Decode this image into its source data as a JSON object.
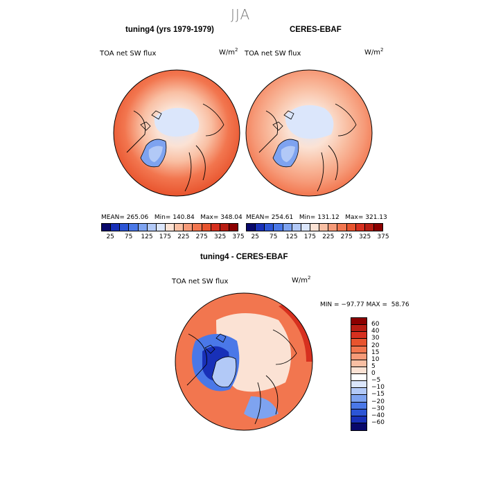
{
  "figure": {
    "season": "JJA"
  },
  "panels": [
    {
      "title": "tuning4 (yrs 1979-1979)",
      "variable": "TOA net SW flux",
      "units_base": "W/m",
      "units_exp": "2",
      "stats": "MEAN= 265.06   Min= 140.84   Max= 348.04"
    },
    {
      "title": "CERES-EBAF",
      "variable": "TOA net SW flux",
      "units_base": "W/m",
      "units_exp": "2",
      "stats": "MEAN= 254.61   Min= 131.12   Max= 321.13"
    },
    {
      "title": "tuning4 - CERES-EBAF",
      "variable": "TOA net SW flux",
      "units_base": "W/m",
      "units_exp": "2",
      "stats": "MIN = −97.77 MAX =  58.76"
    }
  ],
  "chart_data": [
    {
      "type": "heatmap",
      "title": "tuning4 (yrs 1979-1979)",
      "subtitle": "TOA net SW flux",
      "units": "W/m^2",
      "projection": "north polar stereographic",
      "summary": {
        "mean": 265.06,
        "min": 140.84,
        "max": 348.04
      },
      "colorbar_ticks": [
        25,
        75,
        125,
        175,
        225,
        275,
        325,
        375
      ],
      "colorbar_colors": [
        "#08086b",
        "#1830b8",
        "#2c55d6",
        "#4a78e8",
        "#7ea3f0",
        "#b2c9f7",
        "#dbe6fb",
        "#fbe2d4",
        "#f9bfa3",
        "#f69a78",
        "#f2764f",
        "#e8542e",
        "#d7301f",
        "#b81d13",
        "#8c0000"
      ]
    },
    {
      "type": "heatmap",
      "title": "CERES-EBAF",
      "subtitle": "TOA net SW flux",
      "units": "W/m^2",
      "projection": "north polar stereographic",
      "summary": {
        "mean": 254.61,
        "min": 131.12,
        "max": 321.13
      },
      "colorbar_ticks": [
        25,
        75,
        125,
        175,
        225,
        275,
        325,
        375
      ],
      "colorbar_colors": [
        "#08086b",
        "#1830b8",
        "#2c55d6",
        "#4a78e8",
        "#7ea3f0",
        "#b2c9f7",
        "#dbe6fb",
        "#fbe2d4",
        "#f9bfa3",
        "#f69a78",
        "#f2764f",
        "#e8542e",
        "#d7301f",
        "#b81d13",
        "#8c0000"
      ]
    },
    {
      "type": "heatmap",
      "title": "tuning4 - CERES-EBAF",
      "subtitle": "TOA net SW flux",
      "units": "W/m^2",
      "projection": "north polar stereographic",
      "summary": {
        "min": -97.77,
        "max": 58.76
      },
      "colorbar_levels": [
        "60",
        "40",
        "30",
        "20",
        "15",
        "10",
        "5",
        "0",
        "−5",
        "−10",
        "−15",
        "−20",
        "−30",
        "−40",
        "−60"
      ],
      "colorbar_colors": [
        "#8c0000",
        "#b81d13",
        "#d7301f",
        "#e8542e",
        "#f2764f",
        "#f69a78",
        "#f9bfa3",
        "#fbe2d4",
        "#ffffff",
        "#dbe6fb",
        "#b2c9f7",
        "#7ea3f0",
        "#4a78e8",
        "#2c55d6",
        "#1830b8",
        "#08086b"
      ]
    }
  ]
}
